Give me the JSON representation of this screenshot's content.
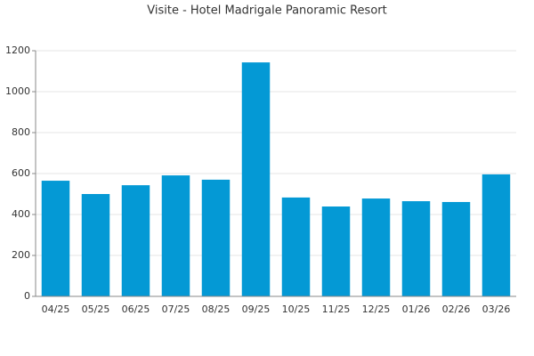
{
  "chart_data": {
    "type": "bar",
    "title": "Visite - Hotel Madrigale Panoramic Resort",
    "categories": [
      "04/25",
      "05/25",
      "06/25",
      "07/25",
      "08/25",
      "09/25",
      "10/25",
      "11/25",
      "12/25",
      "01/26",
      "02/26",
      "03/26"
    ],
    "values": [
      565,
      500,
      543,
      591,
      570,
      1143,
      483,
      439,
      478,
      465,
      461,
      596
    ],
    "color": "#0499d5",
    "ylim": [
      0,
      1200
    ],
    "yticks": [
      0,
      200,
      400,
      600,
      800,
      1000,
      1200
    ],
    "grid": true
  }
}
